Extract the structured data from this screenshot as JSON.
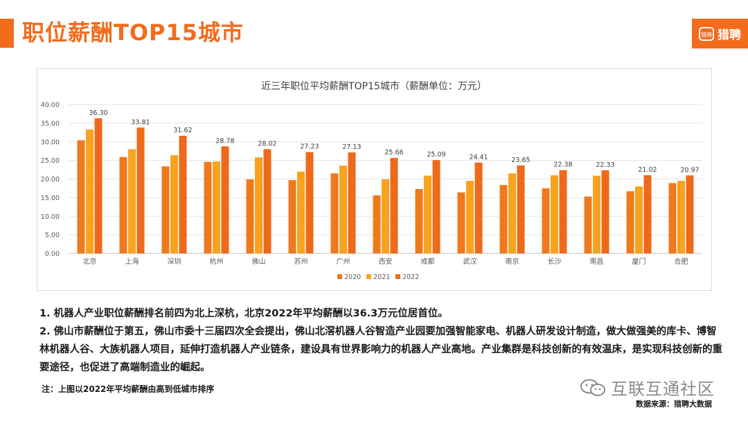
{
  "header": {
    "title": "职位薪酬TOP15城市",
    "logo_mark": "猎聘",
    "logo_text": "猎聘"
  },
  "chart_data": {
    "type": "bar",
    "title": "近三年职位平均薪酬TOP15城市（薪酬单位：万元）",
    "categories": [
      "北京",
      "上海",
      "深圳",
      "杭州",
      "佛山",
      "苏州",
      "广州",
      "西安",
      "成都",
      "武汉",
      "南京",
      "长沙",
      "南昌",
      "厦门",
      "合肥"
    ],
    "series": [
      {
        "name": "2020",
        "color": "#f0791c",
        "values": [
          30.4,
          25.9,
          23.4,
          24.6,
          19.9,
          19.7,
          21.5,
          15.6,
          17.3,
          16.4,
          18.4,
          17.5,
          15.3,
          16.7,
          18.9
        ]
      },
      {
        "name": "2021",
        "color": "#f8a21e",
        "values": [
          33.3,
          28.0,
          26.4,
          24.7,
          25.8,
          22.0,
          23.6,
          19.9,
          20.9,
          19.5,
          21.5,
          21.0,
          20.9,
          18.0,
          19.5
        ]
      },
      {
        "name": "2022",
        "color": "#ee6a1a",
        "values": [
          36.3,
          33.81,
          31.62,
          28.78,
          28.02,
          27.23,
          27.13,
          25.66,
          25.09,
          24.41,
          23.65,
          22.38,
          22.33,
          21.02,
          20.97
        ]
      }
    ],
    "data_labels": [
      "36.30",
      "33.81",
      "31.62",
      "28.78",
      "28.02",
      "27.23",
      "27.13",
      "25.66",
      "25.09",
      "24.41",
      "23.65",
      "22.38",
      "22.33",
      "21.02",
      "20.97"
    ],
    "ylim": [
      0,
      40
    ],
    "yticks": [
      "0.00",
      "5.00",
      "10.00",
      "15.00",
      "20.00",
      "25.00",
      "30.00",
      "35.00",
      "40.00"
    ],
    "grid": true,
    "legend_position": "bottom"
  },
  "notes": {
    "line1": "1. 机器人产业职位薪酬排名前四为北上深杭，北京2022年平均薪酬以36.3万元位居首位。",
    "line2": "2. 佛山市薪酬位于第五，佛山市委十三届四次全会提出，佛山北滘机器人谷智造产业园要加强智能家电、机器人研发设计制造，做大做强美的库卡、博智林机器人谷、大族机器人项目，延伸打造机器人产业链条，建设具有世界影响力的机器人产业高地。产业集群是科技创新的有效温床，是实现科技创新的重要途径，也促进了高端制造业的崛起。",
    "footnote": "注：上图以2022年平均薪酬由高到低城市排序"
  },
  "watermark": "互联互通社区",
  "source": "数据来源：猎聘大数据"
}
